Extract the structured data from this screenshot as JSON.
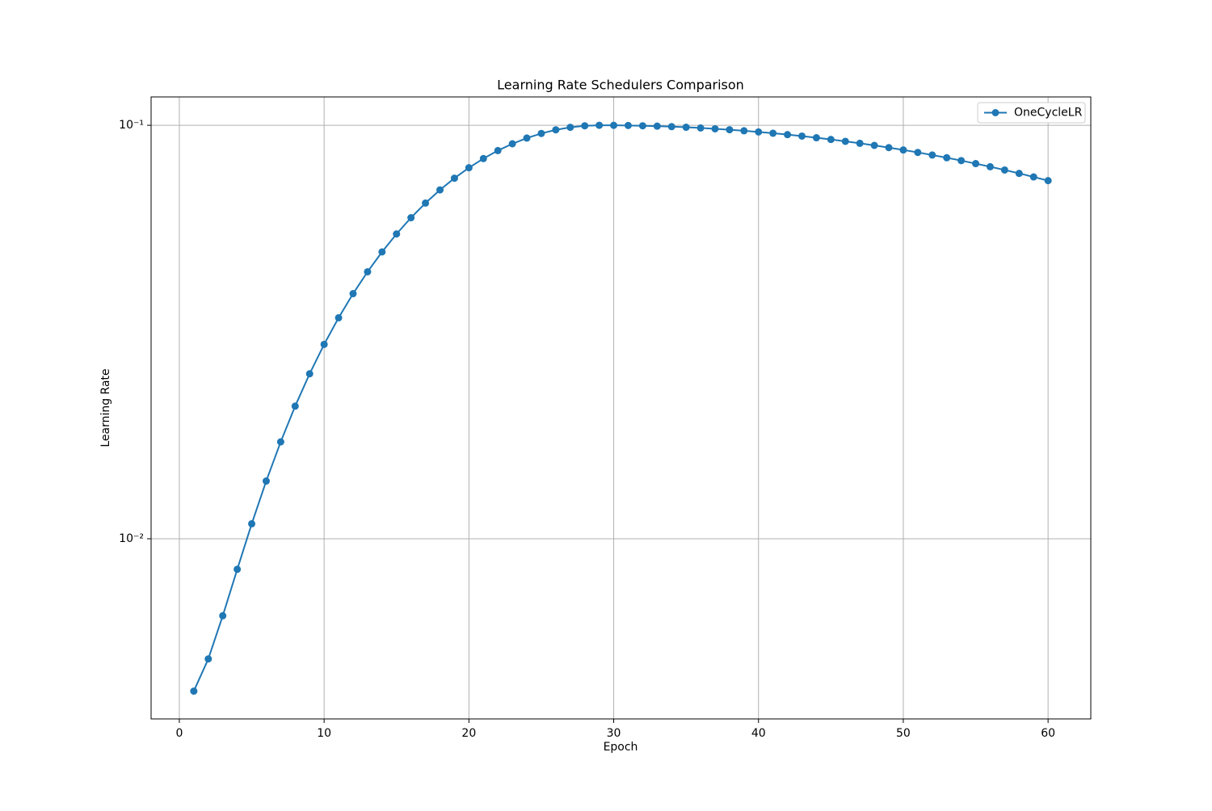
{
  "chart_data": {
    "type": "line",
    "title": "Learning Rate Schedulers Comparison",
    "x_label": "Epoch",
    "y_label": "Learning Rate",
    "x": [
      1,
      2,
      3,
      4,
      5,
      6,
      7,
      8,
      9,
      10,
      11,
      12,
      13,
      14,
      15,
      16,
      17,
      18,
      19,
      20,
      21,
      22,
      23,
      24,
      25,
      26,
      27,
      28,
      29,
      30,
      31,
      32,
      33,
      34,
      35,
      36,
      37,
      38,
      39,
      40,
      41,
      42,
      43,
      44,
      45,
      46,
      47,
      48,
      49,
      50,
      51,
      52,
      53,
      54,
      55,
      56,
      57,
      58,
      59,
      60
    ],
    "series": [
      {
        "name": "OneCycleLR",
        "color": "#1f77b4",
        "values": [
          0.004281,
          0.005122,
          0.006513,
          0.008436,
          0.01087,
          0.01379,
          0.01715,
          0.02093,
          0.02506,
          0.02952,
          0.03423,
          0.03916,
          0.04423,
          0.0494,
          0.0546,
          0.05977,
          0.06484,
          0.06977,
          0.07448,
          0.07894,
          0.08308,
          0.08685,
          0.09021,
          0.09313,
          0.09556,
          0.09749,
          0.09888,
          0.09972,
          0.1,
          0.09997,
          0.09988,
          0.09973,
          0.09951,
          0.09924,
          0.09891,
          0.09851,
          0.09806,
          0.09755,
          0.09698,
          0.09636,
          0.09568,
          0.09494,
          0.09415,
          0.0933,
          0.0924,
          0.09145,
          0.09045,
          0.0894,
          0.0883,
          0.08716,
          0.08597,
          0.08473,
          0.08346,
          0.08214,
          0.08078,
          0.07939,
          0.07796,
          0.0765,
          0.075,
          0.07347
        ]
      }
    ],
    "xlim": [
      -1.95,
      62.95
    ],
    "xticks": [
      0,
      10,
      20,
      30,
      40,
      50,
      60
    ],
    "ylim": [
      0.003667,
      0.1171
    ],
    "yticks": [
      {
        "value": 0.01,
        "label": "10⁻²"
      },
      {
        "value": 0.1,
        "label": "10⁻¹"
      }
    ],
    "y_scale": "log",
    "grid": true,
    "legend": "upper right"
  }
}
